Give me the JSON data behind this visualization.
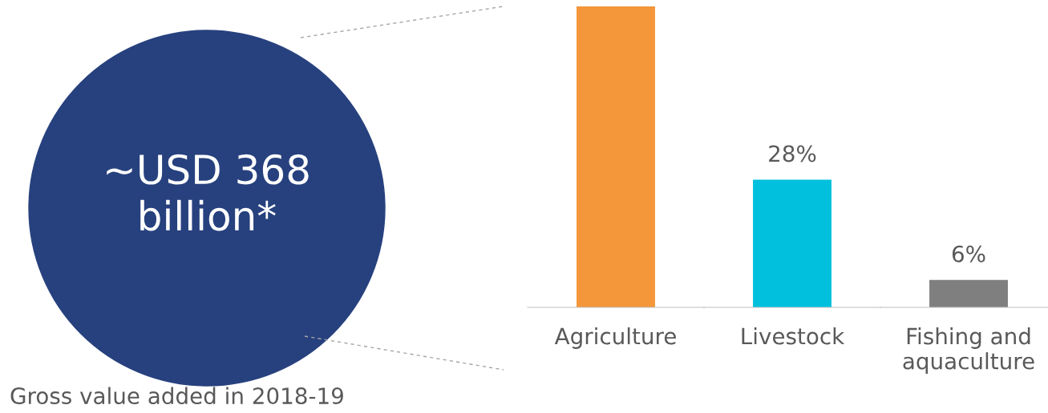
{
  "chart_data": {
    "type": "bar",
    "categories": [
      "Agriculture",
      "Livestock",
      "Fishing and\naquaculture"
    ],
    "values": [
      66,
      28,
      6
    ],
    "colors": [
      "#f4963a",
      "#00c0de",
      "#7f7f7f"
    ],
    "value_labels": [
      null,
      "28%",
      "6%"
    ],
    "annotations": [
      "~USD 368\nbillion*",
      "Gross value added in 2018-19"
    ]
  }
}
